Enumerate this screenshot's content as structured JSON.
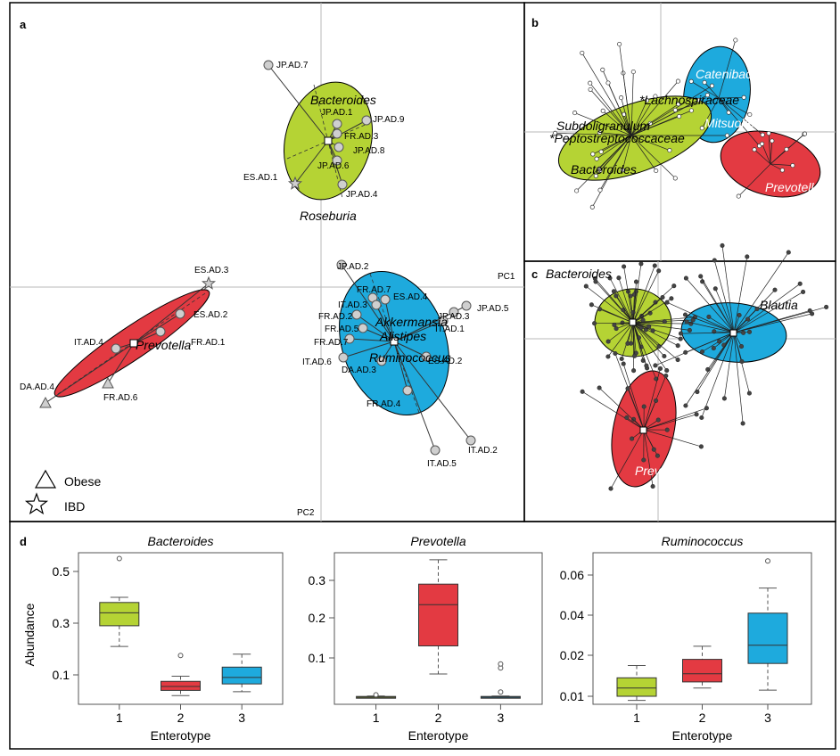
{
  "colors": {
    "green": "#b5d334",
    "red": "#e33a42",
    "blue": "#1eaadd",
    "marker": "#cfcfcf"
  },
  "panels": {
    "a": "a",
    "b": "b",
    "c": "c",
    "d": "d"
  },
  "panel_a": {
    "axes": {
      "pc1": "PC1",
      "pc2": "PC2"
    },
    "legend": [
      {
        "label": "Obese",
        "shape": "triangle"
      },
      {
        "label": "IBD",
        "shape": "star"
      }
    ],
    "drivers": [
      "Bacteroides",
      "Roseburia",
      "Prevotella",
      "Akkermansia",
      "Alistipes",
      "Ruminococcus"
    ],
    "samples": [
      {
        "label": "JP.AD.7",
        "shape": "circle"
      },
      {
        "label": "JP.AD.1",
        "shape": "circle"
      },
      {
        "label": "JP.AD.9",
        "shape": "circle"
      },
      {
        "label": "FR.AD.3",
        "shape": "circle"
      },
      {
        "label": "JP.AD.8",
        "shape": "circle"
      },
      {
        "label": "JP.AD.6",
        "shape": "circle"
      },
      {
        "label": "ES.AD.1",
        "shape": "star"
      },
      {
        "label": "JP.AD.4",
        "shape": "circle"
      },
      {
        "label": "ES.AD.3",
        "shape": "star"
      },
      {
        "label": "ES.AD.2",
        "shape": "circle"
      },
      {
        "label": "IT.AD.4",
        "shape": "circle"
      },
      {
        "label": "FR.AD.1",
        "shape": "circle"
      },
      {
        "label": "DA.AD.4",
        "shape": "triangle"
      },
      {
        "label": "FR.AD.6",
        "shape": "triangle"
      },
      {
        "label": "JP.AD.2",
        "shape": "circle"
      },
      {
        "label": "FR.AD.7",
        "shape": "circle"
      },
      {
        "label": "ES.AD.4",
        "shape": "circle"
      },
      {
        "label": "IT.AD.3",
        "shape": "circle"
      },
      {
        "label": "FR.AD.2",
        "shape": "circle"
      },
      {
        "label": "FR.AD.5",
        "shape": "circle"
      },
      {
        "label": "FR.AD.7",
        "shape": "circle"
      },
      {
        "label": "JP.AD.3",
        "shape": "circle"
      },
      {
        "label": "IT.AD.1",
        "shape": "circle"
      },
      {
        "label": "JP.AD.5",
        "shape": "circle"
      },
      {
        "label": "IT.AD.6",
        "shape": "circle"
      },
      {
        "label": "DA.AD.3",
        "shape": "circle"
      },
      {
        "label": "ES.AD.2",
        "shape": "circle"
      },
      {
        "label": "FR.AD.4",
        "shape": "circle"
      },
      {
        "label": "IT.AD.5",
        "shape": "circle"
      },
      {
        "label": "IT.AD.2",
        "shape": "circle"
      }
    ]
  },
  "panel_b": {
    "drivers": [
      "Catenibacterium",
      "*Lachnospiraceae",
      "Mitsuokella",
      "Subdoligranulum",
      "*Peptostreptococcaceae",
      "Bacteroides",
      "Prevotella"
    ]
  },
  "panel_c": {
    "drivers": [
      "Bacteroides",
      "Blautia",
      "Prevotella"
    ]
  },
  "chart_data": [
    {
      "type": "box",
      "title": "Bacteroides",
      "xlabel": "Enterotype",
      "ylabel": "Abundance",
      "categories": [
        "1",
        "2",
        "3"
      ],
      "yticks": [
        "0.1",
        "0.3",
        "0.5"
      ],
      "ylim": [
        0,
        0.58
      ],
      "boxes": [
        {
          "min": 0.21,
          "q1": 0.29,
          "median": 0.34,
          "q3": 0.38,
          "max": 0.4,
          "outliers": [
            0.55
          ],
          "color": "#b5d334"
        },
        {
          "min": 0.02,
          "q1": 0.04,
          "median": 0.055,
          "q3": 0.075,
          "max": 0.095,
          "outliers": [
            0.175
          ],
          "color": "#e33a42"
        },
        {
          "min": 0.035,
          "q1": 0.065,
          "median": 0.09,
          "q3": 0.13,
          "max": 0.18,
          "outliers": [],
          "color": "#1eaadd"
        }
      ]
    },
    {
      "type": "box",
      "title": "Prevotella",
      "xlabel": "Enterotype",
      "ylabel": "",
      "categories": [
        "1",
        "2",
        "3"
      ],
      "yticks": [
        "0.1",
        "0.2",
        "0.3"
      ],
      "ylim": [
        -0.02,
        0.37
      ],
      "boxes": [
        {
          "min": 0.0,
          "q1": 0.0,
          "median": 0.002,
          "q3": 0.004,
          "max": 0.005,
          "outliers": [
            0.008
          ],
          "color": "#b5d334"
        },
        {
          "min": 0.06,
          "q1": 0.13,
          "median": 0.235,
          "q3": 0.29,
          "max": 0.355,
          "outliers": [],
          "color": "#e33a42"
        },
        {
          "min": 0.0,
          "q1": 0.0,
          "median": 0.002,
          "q3": 0.004,
          "max": 0.005,
          "outliers": [
            0.015,
            0.075,
            0.085
          ],
          "color": "#1eaadd"
        }
      ]
    },
    {
      "type": "box",
      "title": "Ruminococcus",
      "xlabel": "Enterotype",
      "ylabel": "",
      "categories": [
        "1",
        "2",
        "3"
      ],
      "yticks": [
        "0.01",
        "0.02",
        "0.04",
        "0.06"
      ],
      "ylim": [
        0.004,
        0.07
      ],
      "boxes": [
        {
          "min": 0.009,
          "q1": 0.01,
          "median": 0.012,
          "q3": 0.0145,
          "max": 0.0175,
          "outliers": [],
          "color": "#b5d334"
        },
        {
          "min": 0.012,
          "q1": 0.0135,
          "median": 0.0155,
          "q3": 0.019,
          "max": 0.0245,
          "outliers": [],
          "color": "#e33a42"
        },
        {
          "min": 0.0115,
          "q1": 0.018,
          "median": 0.025,
          "q3": 0.041,
          "max": 0.0535,
          "outliers": [
            0.067
          ],
          "color": "#1eaadd"
        }
      ]
    }
  ]
}
